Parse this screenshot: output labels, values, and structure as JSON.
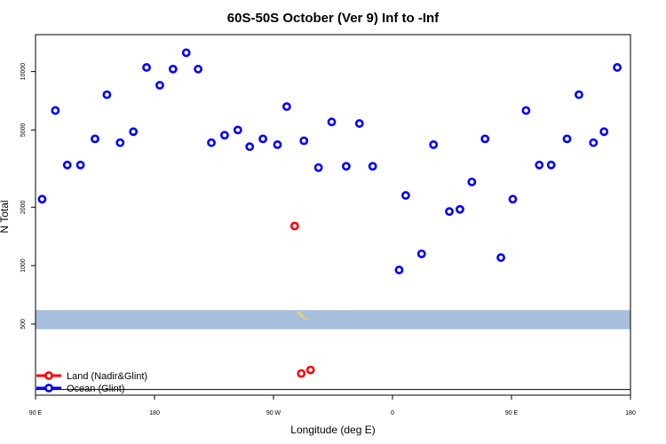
{
  "chart_data": {
    "type": "scatter",
    "title": "60S-50S October (Ver 9)   Inf to -Inf",
    "xlabel": "Longitude (deg E)",
    "ylabel": "N Total",
    "x_ticks": [
      {
        "lon": 90,
        "label": "90 E"
      },
      {
        "lon": 180,
        "label": "180"
      },
      {
        "lon": 270,
        "label": "90 W"
      },
      {
        "lon": 360,
        "label": "0"
      },
      {
        "lon": 450,
        "label": "90 E"
      },
      {
        "lon": 540,
        "label": "180"
      }
    ],
    "y_ticks": [
      {
        "value": 500,
        "label": "500"
      },
      {
        "value": 1000,
        "label": "1000"
      },
      {
        "value": 2000,
        "label": "2000"
      },
      {
        "value": 5000,
        "label": "5000"
      },
      {
        "value": 10000,
        "label": "10000"
      }
    ],
    "xlim": [
      90,
      540
    ],
    "ylim": [
      215,
      15500
    ],
    "y_scale": "log",
    "map_band": {
      "y_range": [
        470,
        590
      ],
      "color": "#a7bfdd",
      "land_color": "#f0cf6e"
    },
    "baseline": 230,
    "legend_placement": "bottom-left",
    "series": [
      {
        "name": "Ocean (Glint)",
        "color": "#0000ff",
        "points": [
          [
            95,
            2200
          ],
          [
            105,
            6300
          ],
          [
            114,
            3300
          ],
          [
            124,
            3300
          ],
          [
            135,
            4500
          ],
          [
            144,
            7600
          ],
          [
            154,
            4300
          ],
          [
            164,
            4900
          ],
          [
            174,
            10500
          ],
          [
            184,
            8500
          ],
          [
            194,
            10300
          ],
          [
            204,
            12500
          ],
          [
            213,
            10300
          ],
          [
            223,
            4300
          ],
          [
            233,
            4700
          ],
          [
            243,
            5000
          ],
          [
            252,
            4100
          ],
          [
            262,
            4500
          ],
          [
            273,
            4200
          ],
          [
            280,
            6600
          ],
          [
            293,
            4400
          ],
          [
            304,
            3200
          ],
          [
            314,
            5500
          ],
          [
            325,
            3250
          ],
          [
            335,
            5400
          ],
          [
            345,
            3250
          ],
          [
            365,
            950
          ],
          [
            370,
            2300
          ],
          [
            382,
            1150
          ],
          [
            391,
            4200
          ],
          [
            403,
            1900
          ],
          [
            411,
            1950
          ],
          [
            420,
            2700
          ],
          [
            430,
            4500
          ],
          [
            442,
            1100
          ],
          [
            451,
            2200
          ],
          [
            461,
            6300
          ],
          [
            471,
            3300
          ],
          [
            480,
            3300
          ],
          [
            492,
            4500
          ],
          [
            501,
            7600
          ],
          [
            512,
            4300
          ],
          [
            520,
            4900
          ],
          [
            530,
            10500
          ]
        ]
      },
      {
        "name": "Land (Nadir&Glint)",
        "color": "#ff0000",
        "points": [
          [
            286,
            1600
          ],
          [
            291,
            278
          ],
          [
            298,
            290
          ]
        ]
      }
    ],
    "legend": [
      {
        "label": "Land (Nadir&Glint)",
        "color": "#ff0000"
      },
      {
        "label": "Ocean (Glint)",
        "color": "#0000ff"
      }
    ]
  }
}
